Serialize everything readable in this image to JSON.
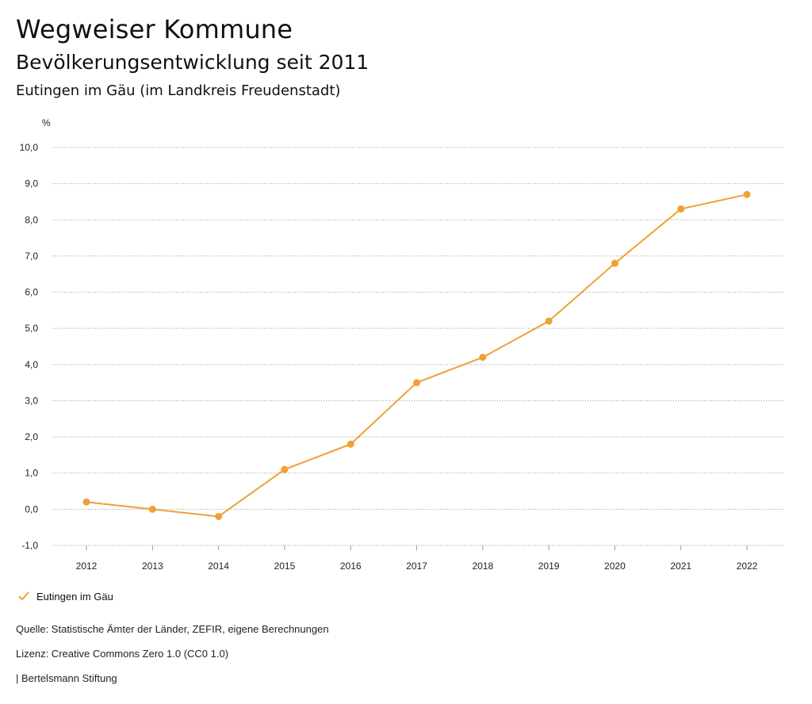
{
  "header": {
    "title": "Wegweiser Kommune",
    "subtitle": "Bevölkerungsentwicklung seit 2011",
    "region": "Eutingen im Gäu (im Landkreis Freudenstadt)"
  },
  "chart_data": {
    "type": "line",
    "ylabel": "%",
    "ylim": [
      -1.0,
      10.0
    ],
    "yticks": [
      "10,0",
      "9,0",
      "8,0",
      "7,0",
      "6,0",
      "5,0",
      "4,0",
      "3,0",
      "2,0",
      "1,0",
      "0,0",
      "-1,0"
    ],
    "x": [
      "2012",
      "2013",
      "2014",
      "2015",
      "2016",
      "2017",
      "2018",
      "2019",
      "2020",
      "2021",
      "2022"
    ],
    "series": [
      {
        "name": "Eutingen im Gäu",
        "color": "#f0a035",
        "values": [
          0.2,
          0.0,
          -0.2,
          1.1,
          1.8,
          3.5,
          4.2,
          5.2,
          6.8,
          8.3,
          8.7
        ]
      }
    ],
    "grid": true,
    "legend": "bottom-left"
  },
  "legend": {
    "label": "Eutingen im Gäu",
    "icon": "check-icon"
  },
  "footer": {
    "source": "Quelle: Statistische Ämter der Länder, ZEFIR, eigene Berechnungen",
    "license": "Lizenz: Creative Commons Zero 1.0 (CC0 1.0)",
    "publisher": "| Bertelsmann Stiftung"
  }
}
